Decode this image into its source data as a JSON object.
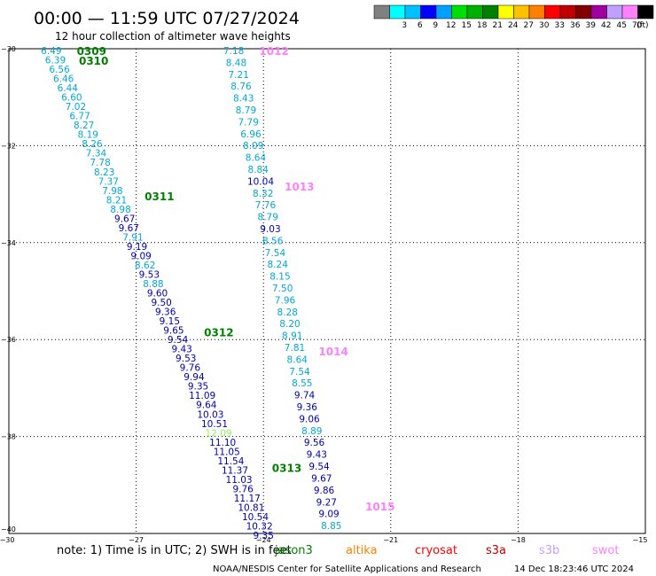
{
  "header": {
    "title": "00:00 — 11:59 UTC 07/27/2024",
    "subtitle": "12 hour collection of altimeter wave heights"
  },
  "legend": {
    "unit": "(ft)",
    "bins": [
      {
        "label": "",
        "color": "#808080"
      },
      {
        "label": "3",
        "color": "#00ffff"
      },
      {
        "label": "6",
        "color": "#00c0ff"
      },
      {
        "label": "9",
        "color": "#0000ff"
      },
      {
        "label": "12",
        "color": "#00a0ff"
      },
      {
        "label": "15",
        "color": "#00e000"
      },
      {
        "label": "18",
        "color": "#00b000"
      },
      {
        "label": "21",
        "color": "#008000"
      },
      {
        "label": "24",
        "color": "#ffff00"
      },
      {
        "label": "27",
        "color": "#ffc000"
      },
      {
        "label": "30",
        "color": "#ff8000"
      },
      {
        "label": "33",
        "color": "#ff0000"
      },
      {
        "label": "36",
        "color": "#c00000"
      },
      {
        "label": "39",
        "color": "#800000"
      },
      {
        "label": "42",
        "color": "#a000a0"
      },
      {
        "label": "45",
        "color": "#c0a0ff"
      },
      {
        "label": "70",
        "color": "#ff80ff"
      },
      {
        "label": "",
        "color": "#000000"
      }
    ]
  },
  "chart_data": {
    "type": "scatter",
    "xlabel": "",
    "ylabel": "",
    "xlim": [
      -30,
      -15
    ],
    "ylim": [
      -40,
      -30
    ],
    "grid": true,
    "x_ticks": [
      {
        "v": -30,
        "label": "−30"
      },
      {
        "v": -27,
        "label": "−27"
      },
      {
        "v": -24,
        "label": "−24"
      },
      {
        "v": -21,
        "label": "−21"
      },
      {
        "v": -18,
        "label": "−18"
      },
      {
        "v": -15,
        "label": "−15"
      }
    ],
    "y_ticks": [
      {
        "v": -30,
        "label": "−30"
      },
      {
        "v": -32,
        "label": "−32"
      },
      {
        "v": -34,
        "label": "−34"
      },
      {
        "v": -36,
        "label": "−36"
      },
      {
        "v": -38,
        "label": "−38"
      },
      {
        "v": -40,
        "label": "−40"
      }
    ],
    "tracks": [
      {
        "start": [
          -29.0,
          -30.0
        ],
        "end": [
          -24.0,
          -40.0
        ],
        "values": [
          "6.49",
          "6.39",
          "6.56",
          "6.46",
          "6.44",
          "6.60",
          "7.02",
          "6.77",
          "8.27",
          "8.19",
          "8.26",
          "7.34",
          "7.78",
          "8.23",
          "7.37",
          "7.98",
          "8.21",
          "8.98",
          "9.67",
          "9.67",
          "7.91",
          "9.19",
          "9.09",
          "8.62",
          "9.53",
          "8.88",
          "9.60",
          "9.50",
          "9.36",
          "9.15",
          "9.65",
          "9.54",
          "9.43",
          "9.53",
          "9.76",
          "9.94",
          "9.35",
          "11.09",
          "9.64",
          "10.03",
          "10.51",
          "12.09",
          "11.10",
          "11.05",
          "11.54",
          "11.37",
          "11.03",
          "9.76",
          "11.17",
          "10.81",
          "10.54",
          "10.32",
          "9.35"
        ]
      },
      {
        "start": [
          -24.7,
          -30.0
        ],
        "end": [
          -22.4,
          -39.8
        ],
        "values": [
          "7.18",
          "8.48",
          "7.21",
          "8.76",
          "8.43",
          "8.79",
          "7.79",
          "6.96",
          "8.09",
          "8.64",
          "8.84",
          "10.04",
          "8.32",
          "7.76",
          "8.79",
          "9.03",
          "8.56",
          "7.54",
          "8.24",
          "8.15",
          "7.50",
          "7.96",
          "8.28",
          "8.20",
          "8.91",
          "7.81",
          "8.64",
          "7.54",
          "8.55",
          "9.74",
          "9.36",
          "9.06",
          "8.89",
          "9.56",
          "9.43",
          "9.54",
          "9.67",
          "9.86",
          "9.27",
          "9.09",
          "8.85"
        ]
      }
    ],
    "time_labels": [
      {
        "text": "0309",
        "lon": -28.4,
        "lat": -30.0,
        "color": "#008000"
      },
      {
        "text": "0310",
        "lon": -28.35,
        "lat": -30.2,
        "color": "#008000"
      },
      {
        "text": "0311",
        "lon": -26.8,
        "lat": -33.0,
        "color": "#008000"
      },
      {
        "text": "0312",
        "lon": -25.4,
        "lat": -35.8,
        "color": "#008000"
      },
      {
        "text": "0313",
        "lon": -23.8,
        "lat": -38.6,
        "color": "#008000"
      },
      {
        "text": "1012",
        "lon": -24.1,
        "lat": -30.0,
        "color": "#ff80ff"
      },
      {
        "text": "1013",
        "lon": -23.5,
        "lat": -32.8,
        "color": "#ff80ff"
      },
      {
        "text": "1014",
        "lon": -22.7,
        "lat": -36.2,
        "color": "#ff80ff"
      },
      {
        "text": "1015",
        "lon": -21.6,
        "lat": -39.4,
        "color": "#ff80ff"
      }
    ]
  },
  "footer": {
    "note": "note:  1) Time is in UTC; 2) SWH is in feet",
    "satellites": [
      {
        "name": "jason3",
        "color": "#008000"
      },
      {
        "name": "altika",
        "color": "#ff8000"
      },
      {
        "name": "cryosat",
        "color": "#ff0000"
      },
      {
        "name": "s3a",
        "color": "#c00000"
      },
      {
        "name": "s3b",
        "color": "#c0a0ff"
      },
      {
        "name": "swot",
        "color": "#ff80ff"
      }
    ],
    "credit": "NOAA/NESDIS Center for Satellite Applications and Research",
    "timestamp": "14 Dec 18:23:46 UTC 2024"
  }
}
